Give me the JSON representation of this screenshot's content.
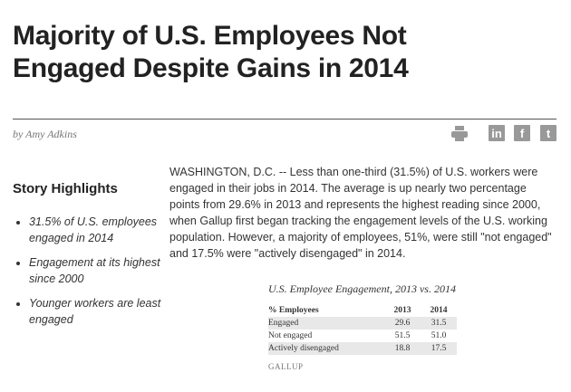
{
  "article": {
    "title": "Majority of U.S. Employees Not Engaged Despite Gains in 2014",
    "byline": "by Amy Adkins",
    "body": "WASHINGTON, D.C. -- Less than one-third (31.5%) of U.S. workers were engaged in their jobs in 2014. The average is up nearly two percentage points from 29.6% in 2013 and represents the highest reading since 2000, when Gallup first began tracking the engagement levels of the U.S. working population. However, a majority of employees, 51%, were still \"not engaged\" and 17.5% were \"actively disengaged\" in 2014."
  },
  "share": {
    "icons": [
      "print-icon",
      "linkedin-icon",
      "facebook-icon",
      "twitter-icon"
    ],
    "linkedin": "in",
    "facebook": "f",
    "twitter": "t"
  },
  "highlights": {
    "title": "Story Highlights",
    "items": [
      "31.5% of U.S. employees engaged in 2014",
      "Engagement at its highest since 2000",
      "Younger workers are least engaged"
    ]
  },
  "table": {
    "title": "U.S. Employee Engagement, 2013 vs. 2014",
    "headers": [
      "% Employees",
      "2013",
      "2014"
    ],
    "rows": [
      [
        "Engaged",
        "29.6",
        "31.5"
      ],
      [
        "Not engaged",
        "51.5",
        "51.0"
      ],
      [
        "Actively disengaged",
        "18.8",
        "17.5"
      ]
    ],
    "source": "GALLUP"
  }
}
